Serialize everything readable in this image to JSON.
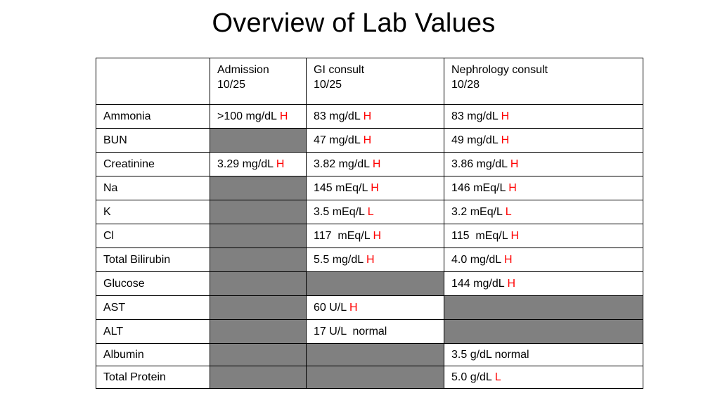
{
  "title": "Overview of Lab Values",
  "colors": {
    "flag": "#ff0000",
    "shaded_cell": "#808080",
    "border": "#000000"
  },
  "columns": [
    {
      "line1": "",
      "line2": ""
    },
    {
      "line1": "Admission",
      "line2": "10/25"
    },
    {
      "line1": "GI consult",
      "line2": "10/25"
    },
    {
      "line1": "Nephrology consult",
      "line2": "10/28"
    }
  ],
  "rows": [
    {
      "label": "Ammonia",
      "cells": [
        {
          "shaded": false,
          "value": ">100 mg/dL",
          "flag": "H"
        },
        {
          "shaded": false,
          "value": "83 mg/dL",
          "flag": "H"
        },
        {
          "shaded": false,
          "value": "83 mg/dL",
          "flag": "H"
        }
      ]
    },
    {
      "label": "BUN",
      "cells": [
        {
          "shaded": true,
          "value": "",
          "flag": ""
        },
        {
          "shaded": false,
          "value": "47 mg/dL",
          "flag": "H"
        },
        {
          "shaded": false,
          "value": "49 mg/dL",
          "flag": "H"
        }
      ]
    },
    {
      "label": "Creatinine",
      "cells": [
        {
          "shaded": false,
          "value": "3.29 mg/dL",
          "flag": "H"
        },
        {
          "shaded": false,
          "value": "3.82 mg/dL",
          "flag": "H"
        },
        {
          "shaded": false,
          "value": "3.86 mg/dL",
          "flag": "H"
        }
      ]
    },
    {
      "label": "Na",
      "cells": [
        {
          "shaded": true,
          "value": "",
          "flag": ""
        },
        {
          "shaded": false,
          "value": "145 mEq/L",
          "flag": "H"
        },
        {
          "shaded": false,
          "value": "146 mEq/L",
          "flag": "H"
        }
      ]
    },
    {
      "label": "K",
      "cells": [
        {
          "shaded": true,
          "value": "",
          "flag": ""
        },
        {
          "shaded": false,
          "value": "3.5 mEq/L",
          "flag": "L"
        },
        {
          "shaded": false,
          "value": "3.2 mEq/L",
          "flag": "L"
        }
      ]
    },
    {
      "label": "Cl",
      "cells": [
        {
          "shaded": true,
          "value": "",
          "flag": ""
        },
        {
          "shaded": false,
          "value": "117  mEq/L",
          "flag": "H"
        },
        {
          "shaded": false,
          "value": "115  mEq/L",
          "flag": "H"
        }
      ]
    },
    {
      "label": "Total Bilirubin",
      "cells": [
        {
          "shaded": true,
          "value": "",
          "flag": ""
        },
        {
          "shaded": false,
          "value": "5.5 mg/dL",
          "flag": "H"
        },
        {
          "shaded": false,
          "value": "4.0 mg/dL",
          "flag": "H"
        }
      ]
    },
    {
      "label": "Glucose",
      "cells": [
        {
          "shaded": true,
          "value": "",
          "flag": ""
        },
        {
          "shaded": true,
          "value": "",
          "flag": ""
        },
        {
          "shaded": false,
          "value": "144 mg/dL",
          "flag": "H"
        }
      ]
    },
    {
      "label": "AST",
      "cells": [
        {
          "shaded": true,
          "value": "",
          "flag": ""
        },
        {
          "shaded": false,
          "value": "60 U/L",
          "flag": "H"
        },
        {
          "shaded": true,
          "value": "",
          "flag": ""
        }
      ]
    },
    {
      "label": "ALT",
      "cells": [
        {
          "shaded": true,
          "value": "",
          "flag": ""
        },
        {
          "shaded": false,
          "value": "17 U/L  normal",
          "flag": ""
        },
        {
          "shaded": true,
          "value": "",
          "flag": ""
        }
      ]
    },
    {
      "label": "Albumin",
      "cells": [
        {
          "shaded": true,
          "value": "",
          "flag": ""
        },
        {
          "shaded": true,
          "value": "",
          "flag": ""
        },
        {
          "shaded": false,
          "value": "3.5 g/dL normal",
          "flag": ""
        }
      ]
    },
    {
      "label": "Total Protein",
      "cells": [
        {
          "shaded": true,
          "value": "",
          "flag": ""
        },
        {
          "shaded": true,
          "value": "",
          "flag": ""
        },
        {
          "shaded": false,
          "value": "5.0 g/dL",
          "flag": "L"
        }
      ]
    }
  ]
}
